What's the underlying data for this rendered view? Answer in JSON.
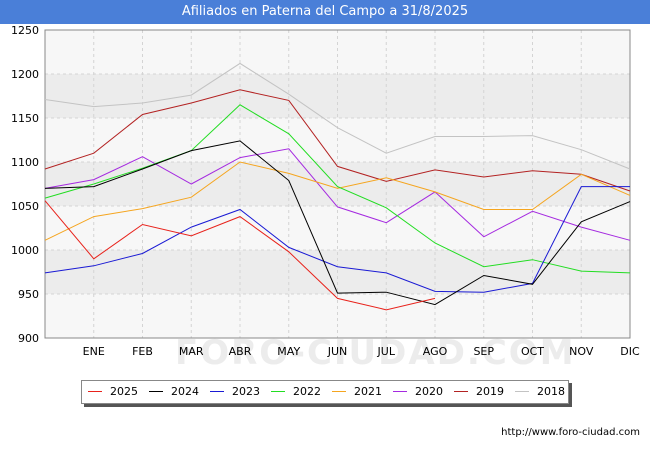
{
  "title": "Afiliados en Paterna del Campo a 31/8/2025",
  "footer": "http://www.foro-ciudad.com",
  "watermark": "FORO-CIUDAD.COM",
  "chart_data": {
    "type": "line",
    "title": "Afiliados en Paterna del Campo a 31/8/2025",
    "categories": [
      "",
      "ENE",
      "FEB",
      "MAR",
      "ABR",
      "MAY",
      "JUN",
      "JUL",
      "AGO",
      "SEP",
      "OCT",
      "NOV",
      "DIC"
    ],
    "ylim": [
      900,
      1250
    ],
    "yticks": [
      900,
      950,
      1000,
      1050,
      1100,
      1150,
      1200,
      1250
    ],
    "grid": true,
    "legend_position": "bottom",
    "series": [
      {
        "name": "2025",
        "color": "#e8221b",
        "values": [
          1056,
          990,
          1029,
          1016,
          1038,
          998,
          945,
          932,
          945,
          null,
          null,
          null,
          null
        ]
      },
      {
        "name": "2024",
        "color": "#000000",
        "values": [
          1070,
          1072,
          1092,
          1113,
          1124,
          1079,
          951,
          952,
          938,
          971,
          961,
          1032,
          1055
        ]
      },
      {
        "name": "2023",
        "color": "#1a1ad4",
        "values": [
          974,
          982,
          996,
          1026,
          1046,
          1003,
          981,
          974,
          953,
          952,
          962,
          1072,
          1072
        ]
      },
      {
        "name": "2022",
        "color": "#22dd22",
        "values": [
          1059,
          1075,
          1093,
          1113,
          1165,
          1132,
          1072,
          1048,
          1008,
          981,
          989,
          976,
          974
        ]
      },
      {
        "name": "2021",
        "color": "#f5a51f",
        "values": [
          1011,
          1038,
          1047,
          1060,
          1100,
          1087,
          1070,
          1082,
          1066,
          1046,
          1046,
          1086,
          1062
        ]
      },
      {
        "name": "2020",
        "color": "#a52ae0",
        "values": [
          1070,
          1080,
          1106,
          1075,
          1105,
          1115,
          1049,
          1031,
          1066,
          1015,
          1044,
          1026,
          1011
        ]
      },
      {
        "name": "2019",
        "color": "#b32222",
        "values": [
          1092,
          1110,
          1154,
          1167,
          1182,
          1170,
          1095,
          1078,
          1091,
          1083,
          1090,
          1086,
          1067
        ]
      },
      {
        "name": "2018",
        "color": "#c3c3c3",
        "values": [
          1171,
          1163,
          1167,
          1176,
          1212,
          1177,
          1139,
          1110,
          1129,
          1129,
          1130,
          1114,
          1092
        ]
      }
    ]
  }
}
